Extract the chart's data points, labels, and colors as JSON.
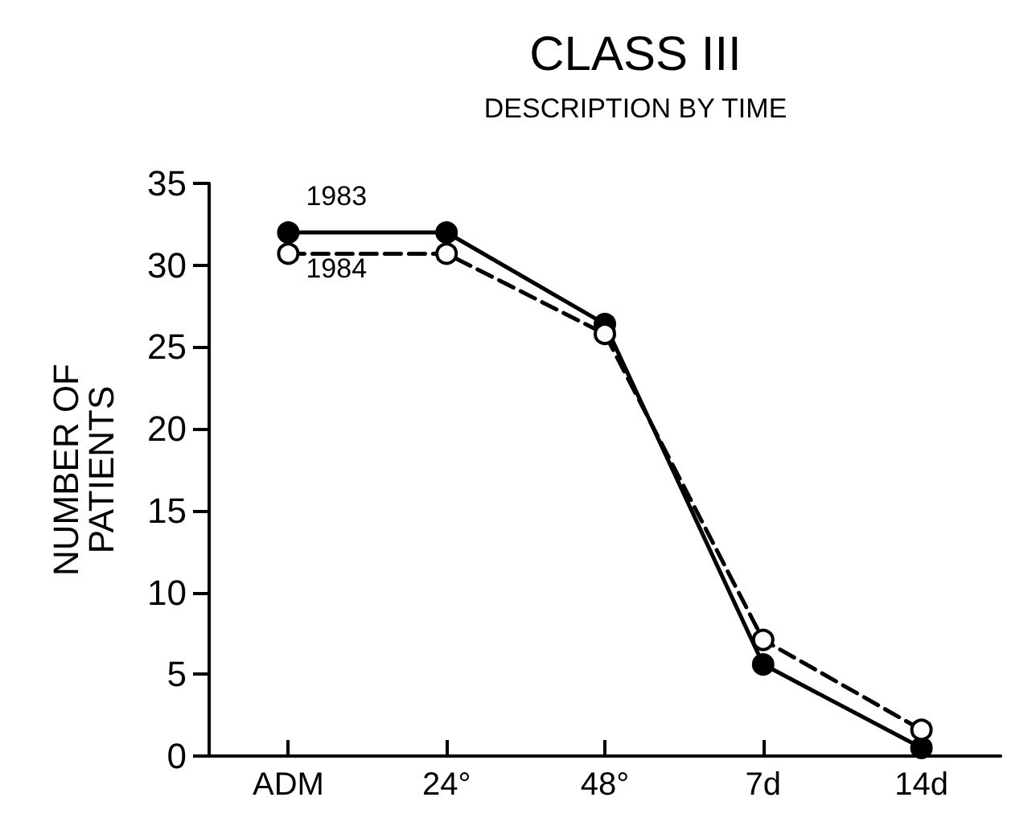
{
  "chart_data": {
    "type": "line",
    "title": "CLASS III",
    "subtitle": "DESCRIPTION BY TIME",
    "ylabel": "NUMBER OF\nPATIENTS",
    "categories": [
      "ADM",
      "24°",
      "48°",
      "7d",
      "14d"
    ],
    "series": [
      {
        "name": "1983",
        "color": "#000000",
        "line_style": "solid",
        "values": [
          32,
          32,
          26.4,
          5.6,
          0.5
        ]
      },
      {
        "name": "1984",
        "color": "#000000",
        "line_style": "dashed",
        "values": [
          30.7,
          30.7,
          25.8,
          7.1,
          1.6
        ]
      }
    ],
    "ylim": [
      0,
      35
    ],
    "yticks": [
      0,
      5,
      10,
      15,
      20,
      25,
      30,
      35
    ],
    "grid": false,
    "legend": false,
    "marker": "circle"
  }
}
